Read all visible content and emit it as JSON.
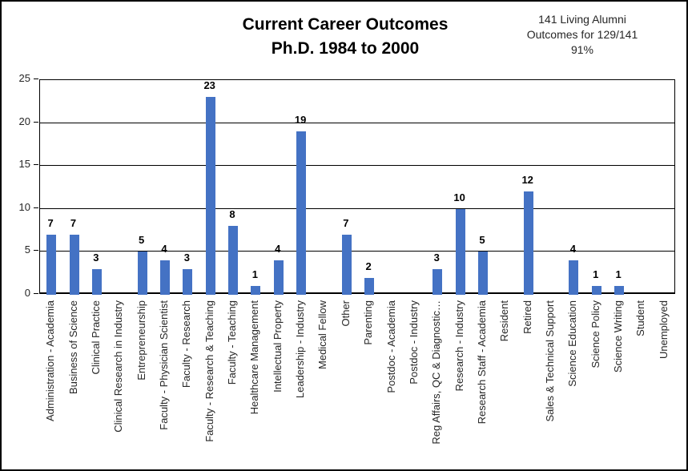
{
  "header": {
    "title_line1": "Current Career Outcomes",
    "title_line2": "Ph.D. 1984 to 2000",
    "annotation_line1": "141 Living Alumni",
    "annotation_line2": "Outcomes for 129/141",
    "annotation_line3": "91%"
  },
  "chart_data": {
    "type": "bar",
    "title": "Current Career Outcomes Ph.D. 1984 to 2000",
    "annotation": "141 Living Alumni Outcomes for 129/141 91%",
    "categories": [
      "Administration - Academia",
      "Business of Science",
      "Clinical Practice",
      "Clinical Research in Industry",
      "Entrepreneurship",
      "Faculty - Physician Scientist",
      "Faculty - Research",
      "Faculty - Research & Teaching",
      "Faculty - Teaching",
      "Healthcare Management",
      "Intellectual Property",
      "Leadership - Industry",
      "Medical Fellow",
      "Other",
      "Parenting",
      "Postdoc - Academia",
      "Postdoc - Industry",
      "Reg Affairs, QC & Diagnostic…",
      "Research - Industry",
      "Research Staff - Academia",
      "Resident",
      "Retired",
      "Sales & Technical Support",
      "Science Education",
      "Science Policy",
      "Science Writing",
      "Student",
      "Unemployed"
    ],
    "values": [
      7,
      7,
      3,
      0,
      5,
      4,
      3,
      23,
      8,
      1,
      4,
      19,
      0,
      7,
      2,
      0,
      0,
      3,
      10,
      5,
      0,
      12,
      0,
      4,
      1,
      1,
      0,
      0
    ],
    "xlabel": "",
    "ylabel": "",
    "ylim": [
      0,
      25
    ],
    "yticks": [
      0,
      5,
      10,
      15,
      20,
      25
    ],
    "bar_color": "#4472C4",
    "grid": true,
    "legend": "none",
    "data_labels": "values shown above non-zero bars"
  }
}
